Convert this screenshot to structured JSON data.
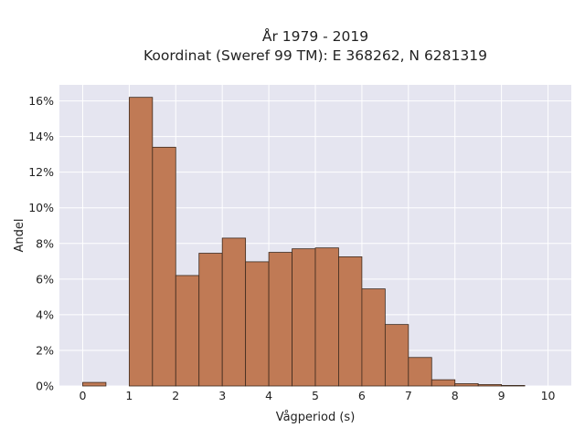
{
  "chart_data": {
    "type": "bar",
    "title": "År 1979 - 2019",
    "subtitle": "Koordinat (Sweref 99 TM): E 368262, N 6281319",
    "xlabel": "Vågperiod (s)",
    "ylabel": "Andel",
    "xlim": [
      -0.5,
      10.5
    ],
    "ylim": [
      0,
      16.9
    ],
    "x_ticks": [
      0,
      1,
      2,
      3,
      4,
      5,
      6,
      7,
      8,
      9,
      10
    ],
    "y_ticks": [
      0,
      2,
      4,
      6,
      8,
      10,
      12,
      14,
      16
    ],
    "y_tick_suffix": "%",
    "bin_width": 0.5,
    "bins": [
      {
        "x0": 0.0,
        "value": 0.2
      },
      {
        "x0": 0.5,
        "value": 0.0
      },
      {
        "x0": 1.0,
        "value": 16.2
      },
      {
        "x0": 1.5,
        "value": 13.4
      },
      {
        "x0": 2.0,
        "value": 6.2
      },
      {
        "x0": 2.5,
        "value": 7.45
      },
      {
        "x0": 3.0,
        "value": 8.3
      },
      {
        "x0": 3.5,
        "value": 6.97
      },
      {
        "x0": 4.0,
        "value": 7.5
      },
      {
        "x0": 4.5,
        "value": 7.7
      },
      {
        "x0": 5.0,
        "value": 7.75
      },
      {
        "x0": 5.5,
        "value": 7.25
      },
      {
        "x0": 6.0,
        "value": 5.45
      },
      {
        "x0": 6.5,
        "value": 3.45
      },
      {
        "x0": 7.0,
        "value": 1.6
      },
      {
        "x0": 7.5,
        "value": 0.35
      },
      {
        "x0": 8.0,
        "value": 0.13
      },
      {
        "x0": 8.5,
        "value": 0.08
      },
      {
        "x0": 9.0,
        "value": 0.03
      }
    ],
    "grid": true,
    "colors": {
      "bar_fill": "#c07a55",
      "bar_stroke": "#3d2a1e",
      "plot_bg": "#e5e5f0",
      "grid": "#ffffff"
    }
  }
}
